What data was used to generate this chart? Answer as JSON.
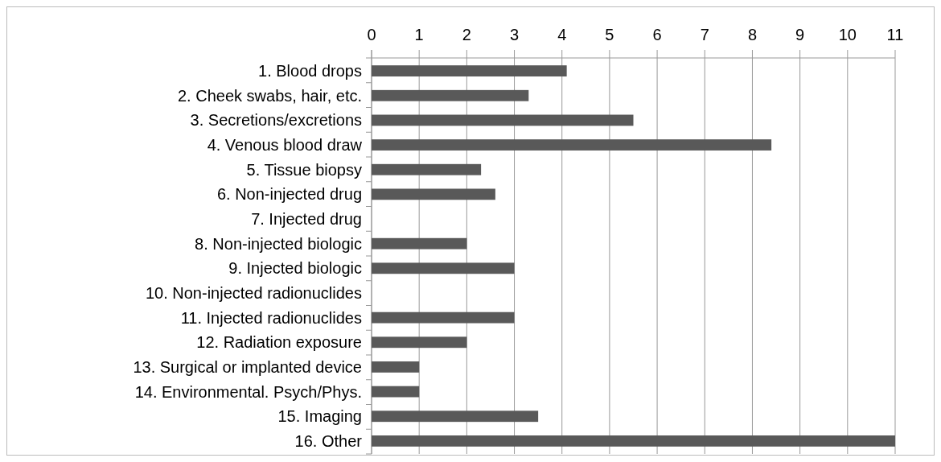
{
  "chart_data": {
    "type": "bar",
    "orientation": "horizontal",
    "categories": [
      "1. Blood drops",
      "2. Cheek swabs, hair, etc.",
      "3. Secretions/excretions",
      "4. Venous blood draw",
      "5. Tissue biopsy",
      "6. Non-injected drug",
      "7. Injected drug",
      "8. Non-injected biologic",
      "9. Injected biologic",
      "10. Non-injected radionuclides",
      "11. Injected radionuclides",
      "12. Radiation exposure",
      "13. Surgical or implanted device",
      "14. Environmental. Psych/Phys.",
      "15. Imaging",
      "16. Other"
    ],
    "values": [
      4.1,
      3.3,
      5.5,
      8.4,
      2.3,
      2.6,
      0,
      2,
      3,
      0,
      3,
      2,
      1,
      1,
      3.5,
      11
    ],
    "color": "#595959",
    "xlim": [
      0,
      11
    ],
    "xticks": [
      0,
      1,
      2,
      3,
      4,
      5,
      6,
      7,
      8,
      9,
      10,
      11
    ],
    "grid": "x"
  }
}
